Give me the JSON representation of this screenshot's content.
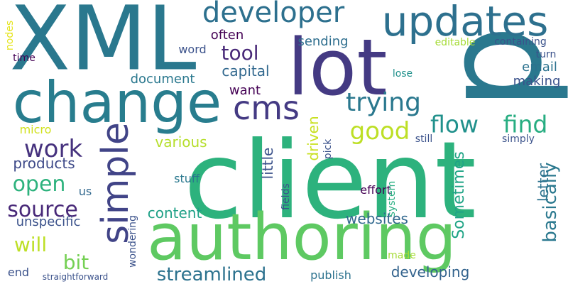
{
  "words": [
    {
      "text": "p",
      "color": "#2a788e",
      "vertical": true
    },
    {
      "text": "client",
      "color": "#2db27d",
      "vertical": false
    },
    {
      "text": "XML",
      "color": "#2a788e",
      "vertical": false
    },
    {
      "text": "lot",
      "color": "#443a83",
      "vertical": false
    },
    {
      "text": "authoring",
      "color": "#5ec962",
      "vertical": false
    },
    {
      "text": "change",
      "color": "#287d8e",
      "vertical": false
    },
    {
      "text": "updates",
      "color": "#2d708e",
      "vertical": false
    },
    {
      "text": "simple",
      "color": "#414487",
      "vertical": true
    },
    {
      "text": "developer",
      "color": "#2d708e",
      "vertical": false
    },
    {
      "text": "cms",
      "color": "#443a83",
      "vertical": false
    },
    {
      "text": "trying",
      "color": "#2a788e",
      "vertical": false
    },
    {
      "text": "flow",
      "color": "#21918c",
      "vertical": false
    },
    {
      "text": "find",
      "color": "#27ad81",
      "vertical": false
    },
    {
      "text": "good",
      "color": "#bddf26",
      "vertical": false
    },
    {
      "text": "work",
      "color": "#46327e",
      "vertical": false
    },
    {
      "text": "open",
      "color": "#2db27d",
      "vertical": false
    },
    {
      "text": "source",
      "color": "#482878",
      "vertical": false
    },
    {
      "text": "will",
      "color": "#bddf26",
      "vertical": false
    },
    {
      "text": "bit",
      "color": "#75d054",
      "vertical": false
    },
    {
      "text": "streamlined",
      "color": "#2c728e",
      "vertical": false
    },
    {
      "text": "tool",
      "color": "#482878",
      "vertical": false
    },
    {
      "text": "basically",
      "color": "#2a788e",
      "vertical": true
    },
    {
      "text": "content",
      "color": "#1fa187",
      "vertical": false
    },
    {
      "text": "websites",
      "color": "#31688e",
      "vertical": false
    },
    {
      "text": "developing",
      "color": "#33638d",
      "vertical": false
    },
    {
      "text": "products",
      "color": "#3e4a89",
      "vertical": false
    },
    {
      "text": "capital",
      "color": "#31688e",
      "vertical": false
    },
    {
      "text": "often",
      "color": "#440154",
      "vertical": false
    },
    {
      "text": "various",
      "color": "#b5de2b",
      "vertical": false
    },
    {
      "text": "Sometimes",
      "color": "#20a486",
      "vertical": true
    },
    {
      "text": "driven",
      "color": "#c8e020",
      "vertical": true
    },
    {
      "text": "little",
      "color": "#3b528b",
      "vertical": true
    },
    {
      "text": "letter",
      "color": "#2c728e",
      "vertical": true
    },
    {
      "text": "unspecific",
      "color": "#3b528b",
      "vertical": false
    },
    {
      "text": "want",
      "color": "#440154",
      "vertical": false
    },
    {
      "text": "document",
      "color": "#2a788e",
      "vertical": false
    },
    {
      "text": "sending",
      "color": "#2e6e8e",
      "vertical": false
    },
    {
      "text": "email",
      "color": "#2c728e",
      "vertical": false
    },
    {
      "text": "making",
      "color": "#3b528b",
      "vertical": false
    },
    {
      "text": "word",
      "color": "#3b528b",
      "vertical": false
    },
    {
      "text": "micro",
      "color": "#d0e11c",
      "vertical": false
    },
    {
      "text": "stuff",
      "color": "#2a788e",
      "vertical": false
    },
    {
      "text": "us",
      "color": "#31688e",
      "vertical": false
    },
    {
      "text": "effort",
      "color": "#440154",
      "vertical": false
    },
    {
      "text": "end",
      "color": "#3b528b",
      "vertical": false
    },
    {
      "text": "publish",
      "color": "#2c728e",
      "vertical": false
    },
    {
      "text": "made",
      "color": "#a5db36",
      "vertical": false
    },
    {
      "text": "lose",
      "color": "#21918c",
      "vertical": false
    },
    {
      "text": "still",
      "color": "#3b528b",
      "vertical": false
    },
    {
      "text": "simply",
      "color": "#3b528b",
      "vertical": false
    },
    {
      "text": "system",
      "color": "#27ad81",
      "vertical": true
    },
    {
      "text": "pick",
      "color": "#3b528b",
      "vertical": true
    },
    {
      "text": "fields",
      "color": "#3b528b",
      "vertical": true
    },
    {
      "text": "wondering",
      "color": "#3b528b",
      "vertical": true
    },
    {
      "text": "nodes",
      "color": "#e5e419",
      "vertical": true
    },
    {
      "text": "time",
      "color": "#440154",
      "vertical": false
    },
    {
      "text": "editable",
      "color": "#a5db36",
      "vertical": false
    },
    {
      "text": "containing",
      "color": "#3b528b",
      "vertical": false
    },
    {
      "text": "turn",
      "color": "#3b528b",
      "vertical": false
    },
    {
      "text": "straightforward",
      "color": "#3b528b",
      "vertical": false
    }
  ]
}
